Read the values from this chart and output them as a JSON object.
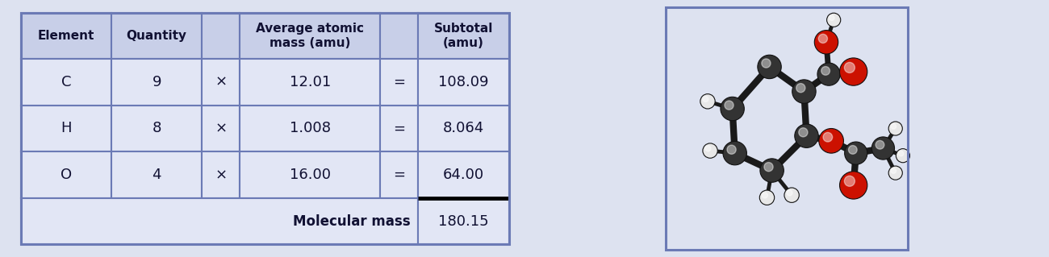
{
  "bg_color": "#dde2f0",
  "outer_border_color": "#6b7ab5",
  "header_bg": "#c8cfe8",
  "cell_bg": "#e2e6f5",
  "text_color": "#111133",
  "header_row": [
    "Element",
    "Quantity",
    "",
    "Average atomic\nmass (amu)",
    "",
    "Subtotal\n(amu)"
  ],
  "data_rows": [
    [
      "C",
      "9",
      "×",
      "12.01",
      "=",
      "108.09"
    ],
    [
      "H",
      "8",
      "×",
      "1.008",
      "=",
      "8.064"
    ],
    [
      "O",
      "4",
      "×",
      "16.00",
      "=",
      "64.00"
    ]
  ],
  "footer_label": "Molecular mass",
  "footer_value": "180.15",
  "C_color": "#333333",
  "H_color": "#e8e8e8",
  "O_color": "#cc1100",
  "bond_color": "#1a1a1a"
}
